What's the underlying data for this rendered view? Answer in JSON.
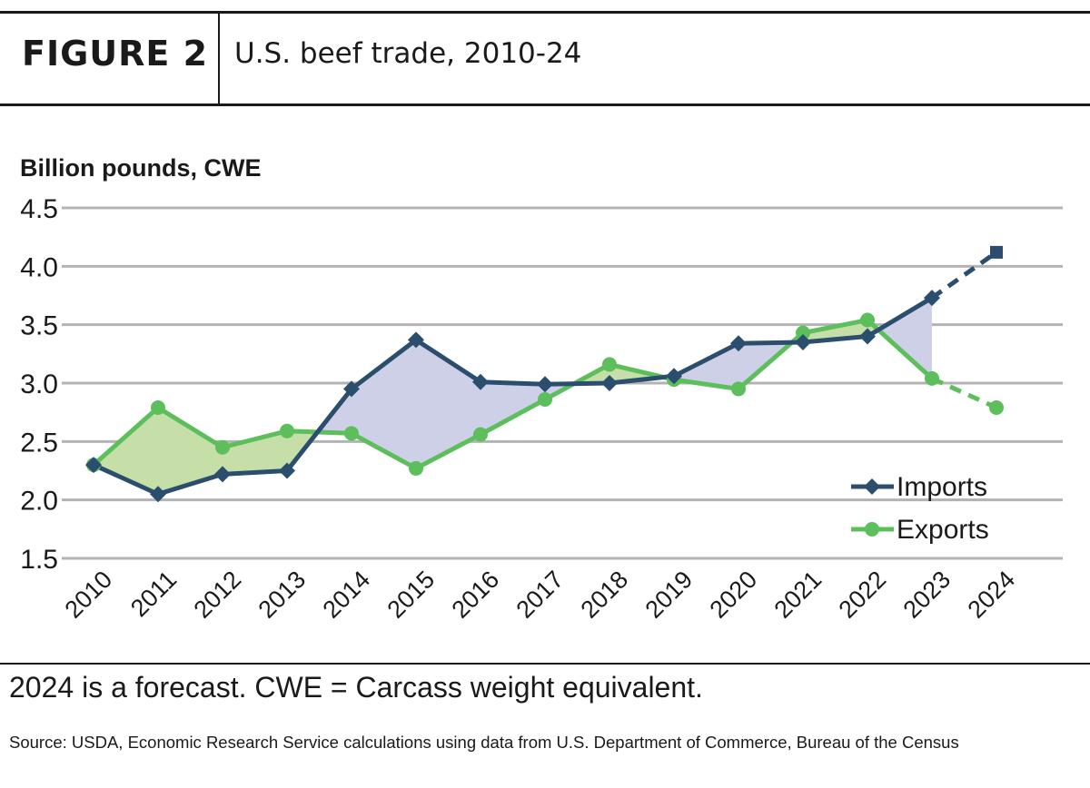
{
  "header": {
    "figure_label": "FIGURE 2",
    "title": "U.S. beef trade, 2010-24"
  },
  "footer": {
    "note": "2024 is a forecast. CWE = Carcass weight equivalent.",
    "source": "Source: USDA, Economic Research Service calculations using data from U.S. Department of Commerce, Bureau of the Census"
  },
  "chart_data": {
    "type": "line",
    "ylabel": "Billion pounds, CWE",
    "xlabel": "",
    "title": "",
    "ylim": [
      1.5,
      4.5
    ],
    "yticks": [
      "1.5",
      "2.0",
      "2.5",
      "3.0",
      "3.5",
      "4.0",
      "4.5"
    ],
    "categories": [
      "2010",
      "2011",
      "2012",
      "2013",
      "2014",
      "2015",
      "2016",
      "2017",
      "2018",
      "2019",
      "2020",
      "2021",
      "2022",
      "2023",
      "2024"
    ],
    "forecast_category": "2024",
    "grid": true,
    "legend_position": "bottom-right",
    "series": [
      {
        "name": "Imports",
        "color": "#2b4e6e",
        "marker": "diamond",
        "values": [
          2.3,
          2.05,
          2.22,
          2.25,
          2.95,
          3.37,
          3.01,
          2.99,
          3.0,
          3.06,
          3.34,
          3.35,
          3.4,
          3.73,
          4.12
        ]
      },
      {
        "name": "Exports",
        "color": "#5cbf5c",
        "marker": "circle",
        "values": [
          2.3,
          2.79,
          2.45,
          2.59,
          2.57,
          2.27,
          2.56,
          2.86,
          3.16,
          3.03,
          2.95,
          3.43,
          3.54,
          3.04,
          2.79
        ]
      }
    ],
    "fill_colors": {
      "imports_above": "#cdd0e6",
      "exports_above": "#c6dfa8"
    }
  }
}
